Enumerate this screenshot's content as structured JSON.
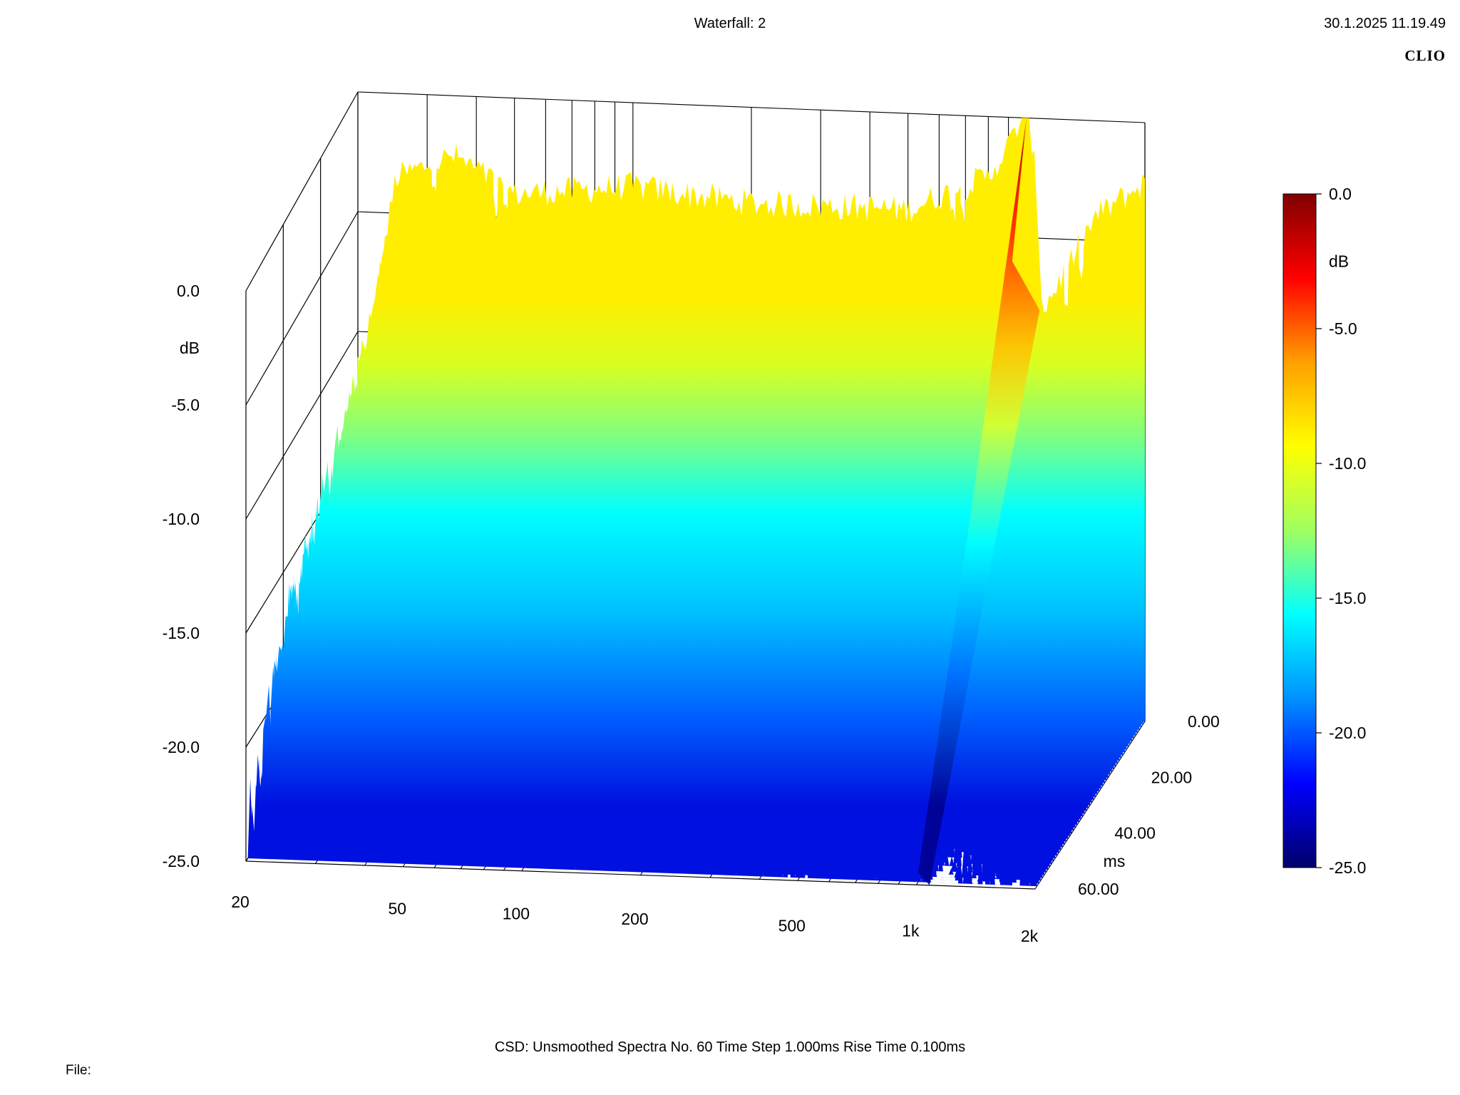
{
  "header": {
    "title": "Waterfall: 2",
    "timestamp": "30.1.2025 11.19.49",
    "brand": "CLIO"
  },
  "footer": {
    "info": "CSD:   Unsmoothed   Spectra No. 60   Time Step 1.000ms   Rise Time 0.100ms",
    "file_label": "File:"
  },
  "chart_data": {
    "type": "waterfall-3d",
    "title": "Waterfall: 2",
    "x_axis": {
      "scale": "log",
      "ticks": [
        20,
        50,
        100,
        200,
        500,
        1000,
        2000
      ],
      "tick_labels": [
        "20",
        "50",
        "100",
        "200",
        "500",
        "1k",
        "2k"
      ],
      "range": [
        20,
        2000
      ]
    },
    "z_axis": {
      "label": "ms",
      "ticks": [
        0,
        20,
        40,
        60
      ],
      "tick_labels": [
        "0.00",
        "20.00",
        "40.00",
        "60.00"
      ],
      "range": [
        0,
        60
      ]
    },
    "y_axis": {
      "label": "dB",
      "ticks": [
        0,
        -5,
        -10,
        -15,
        -20,
        -25
      ],
      "tick_labels": [
        "0.0",
        "-5.0",
        "-10.0",
        "-15.0",
        "-20.0",
        "-25.0"
      ],
      "range": [
        -25,
        0
      ]
    },
    "colorbar": {
      "label": "dB",
      "range": [
        -25,
        0
      ],
      "tick_labels": [
        "0.0",
        "-5.0",
        "-10.0",
        "-15.0",
        "-20.0",
        "-25.0"
      ],
      "colors": [
        "#00006a",
        "#0000ff",
        "#0090ff",
        "#00ffff",
        "#a0ff60",
        "#ffff00",
        "#ffa000",
        "#ff0000",
        "#800000"
      ]
    },
    "spectra_count": 60,
    "time_step_ms": 1.0,
    "rise_time_ms": 0.1,
    "smoothing": "Unsmoothed",
    "first_spectrum_db": [
      {
        "f": 20,
        "db": -13.0
      },
      {
        "f": 25,
        "db": -3.5
      },
      {
        "f": 35,
        "db": -2.5
      },
      {
        "f": 50,
        "db": -4.0
      },
      {
        "f": 100,
        "db": -3.5
      },
      {
        "f": 200,
        "db": -4.0
      },
      {
        "f": 500,
        "db": -4.0
      },
      {
        "f": 800,
        "db": -2.5
      },
      {
        "f": 1000,
        "db": 0.0
      },
      {
        "f": 1100,
        "db": -8.0
      },
      {
        "f": 1500,
        "db": -4.0
      },
      {
        "f": 2000,
        "db": -2.5
      }
    ],
    "decay_ridges": [
      {
        "f": 1000,
        "db_at_0ms": 0.0,
        "db_at_60ms": -25.0
      }
    ]
  }
}
